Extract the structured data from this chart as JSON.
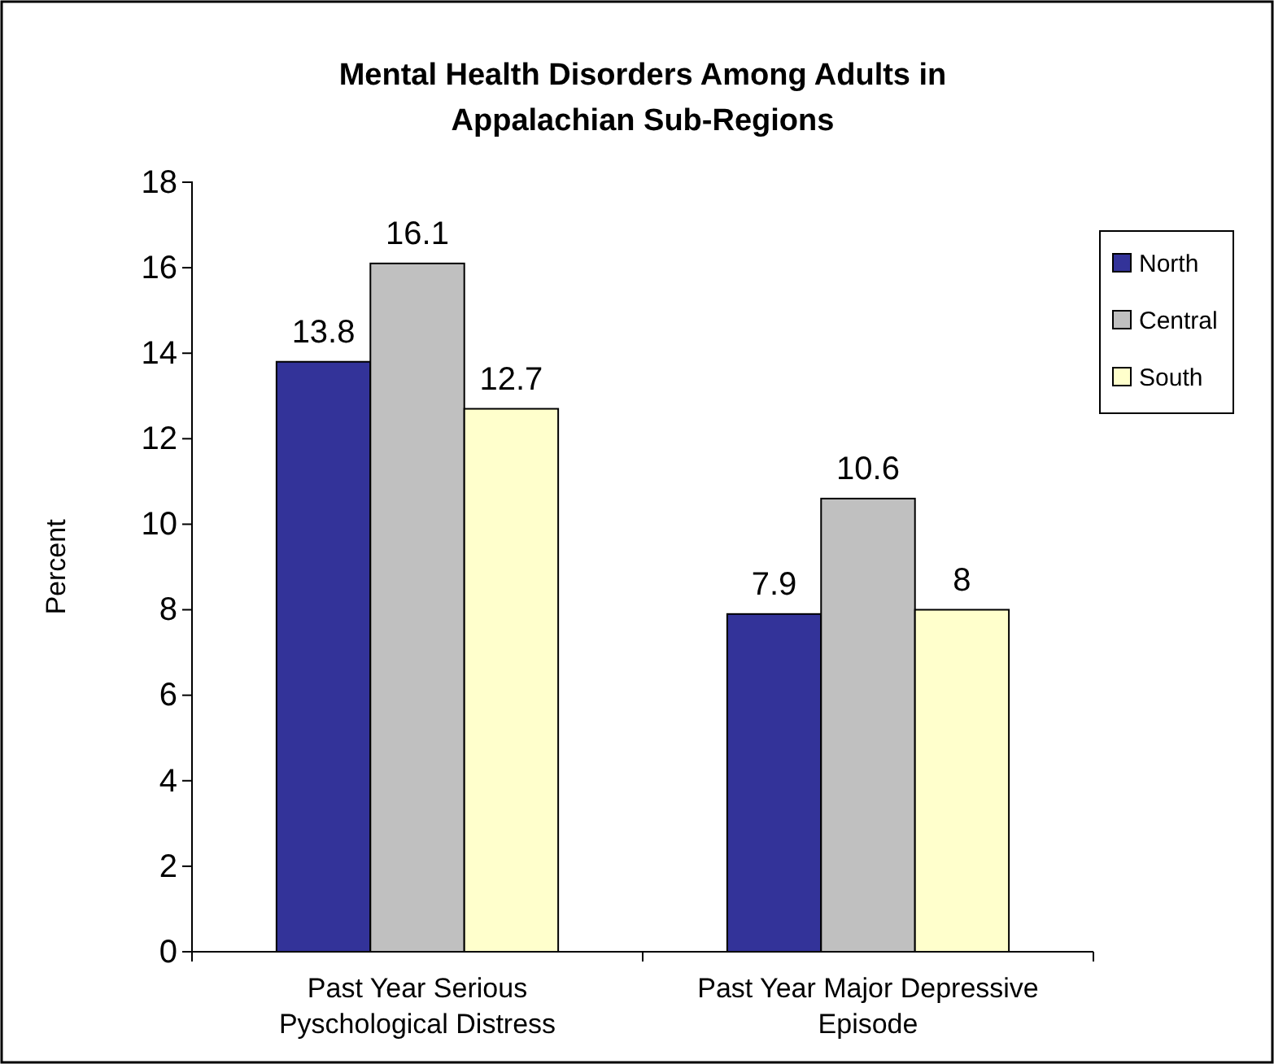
{
  "chart_data": {
    "type": "bar",
    "title": "Mental Health Disorders Among Adults in Appalachian Sub-Regions",
    "ylabel": "Percent",
    "categories": [
      "Past Year Serious Pyschological Distress",
      "Past Year Major Depressive Episode"
    ],
    "series": [
      {
        "name": "North",
        "color": "#333399",
        "values": [
          13.8,
          7.9
        ]
      },
      {
        "name": "Central",
        "color": "#c0c0c0",
        "values": [
          16.1,
          10.6
        ]
      },
      {
        "name": "South",
        "color": "#ffffcc",
        "values": [
          12.7,
          8
        ]
      }
    ],
    "ylim": [
      0,
      18
    ],
    "yticks": [
      0,
      2,
      4,
      6,
      8,
      10,
      12,
      14,
      16,
      18
    ],
    "data_labels": true,
    "legend": "right",
    "grid": false
  }
}
